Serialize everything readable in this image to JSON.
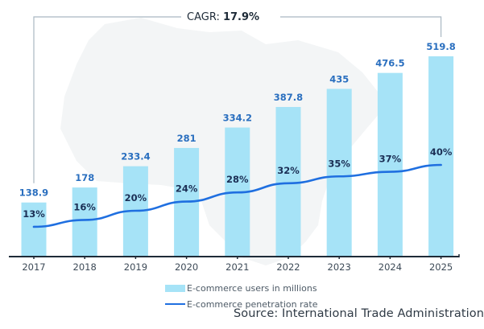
{
  "chart_data": {
    "type": "bar",
    "title": "",
    "categories": [
      "2017",
      "2018",
      "2019",
      "2020",
      "2021",
      "2022",
      "2023",
      "2024",
      "2025"
    ],
    "series": [
      {
        "name": "E-commerce users in millions",
        "type": "bar",
        "values": [
          138.9,
          178,
          233.4,
          281,
          334.2,
          387.8,
          435,
          476.5,
          519.8
        ],
        "labels": [
          "138.9",
          "178",
          "233.4",
          "281",
          "334.2",
          "387.8",
          "435",
          "476.5",
          "519.8"
        ],
        "color": "#a6e3f7"
      },
      {
        "name": "E-commerce penetration rate",
        "type": "line",
        "values": [
          13,
          16,
          20,
          24,
          28,
          32,
          35,
          37,
          40
        ],
        "labels": [
          "13%",
          "16%",
          "20%",
          "24%",
          "28%",
          "32%",
          "35%",
          "37%",
          "40%"
        ],
        "unit": "%",
        "color": "#1f6fe0"
      }
    ],
    "annotation": {
      "prefix": "CAGR: ",
      "value": "17.9%",
      "from": "2017",
      "to": "2025"
    },
    "xlabel": "",
    "ylabel": "",
    "ylim": [
      0,
      520
    ],
    "grid": false,
    "legend_position": "bottom-center"
  },
  "legend": {
    "items": [
      {
        "label": "E-commerce users in millions",
        "kind": "bar"
      },
      {
        "label": "E-commerce penetration rate",
        "kind": "line"
      }
    ]
  },
  "source": "Source: International Trade Administration",
  "colors": {
    "bar": "#a6e3f7",
    "line": "#1f6fe0",
    "bar_label": "#2a6fbf",
    "pct_label": "#1b2f55",
    "axis": "#1e2b38",
    "bracket": "#a9b8c2"
  }
}
